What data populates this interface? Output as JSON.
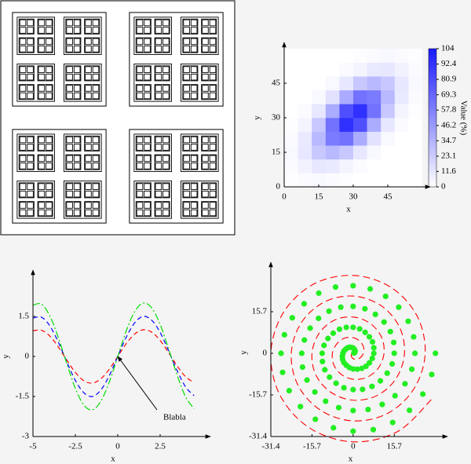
{
  "chart_data": [
    {
      "type": "heatmap",
      "xlabel": "x",
      "ylabel": "y",
      "xlim": [
        0,
        60
      ],
      "ylim": [
        0,
        60
      ],
      "xticks": [
        0,
        15,
        30,
        45
      ],
      "yticks": [
        0,
        15,
        30,
        45
      ],
      "xbins": [
        0,
        6,
        12,
        18,
        24,
        30,
        36,
        42,
        48,
        54,
        60
      ],
      "ybins": [
        0,
        6,
        12,
        18,
        24,
        30,
        36,
        42,
        48,
        54,
        60
      ],
      "values": [
        [
          1,
          2,
          3,
          2,
          1,
          0,
          0,
          0,
          0,
          0
        ],
        [
          2,
          6,
          11,
          10,
          5,
          2,
          0,
          0,
          0,
          0
        ],
        [
          3,
          11,
          25,
          32,
          25,
          11,
          3,
          0,
          0,
          0
        ],
        [
          2,
          10,
          32,
          60,
          64,
          38,
          13,
          3,
          0,
          0
        ],
        [
          1,
          5,
          25,
          64,
          94,
          80,
          38,
          11,
          2,
          0
        ],
        [
          0,
          2,
          11,
          38,
          80,
          94,
          64,
          25,
          5,
          1
        ],
        [
          0,
          0,
          3,
          13,
          38,
          64,
          60,
          32,
          10,
          2
        ],
        [
          0,
          0,
          0,
          3,
          11,
          25,
          32,
          25,
          11,
          3
        ],
        [
          0,
          0,
          0,
          0,
          2,
          5,
          10,
          11,
          6,
          2
        ],
        [
          0,
          0,
          0,
          0,
          0,
          1,
          2,
          3,
          2,
          1
        ]
      ],
      "colorbar": {
        "label": "Value (%)",
        "lim": [
          0,
          104
        ],
        "ticks": [
          0,
          11.6,
          23.1,
          34.7,
          46.2,
          57.8,
          69.3,
          80.9,
          92.4,
          104
        ],
        "colors": [
          "#ffffff",
          "#1a1aff"
        ]
      }
    },
    {
      "type": "line",
      "xlabel": "x",
      "ylabel": "y",
      "xlim": [
        -5,
        5
      ],
      "ylim": [
        -3,
        3
      ],
      "xticks": [
        -5,
        -2.5,
        0,
        2.5
      ],
      "yticks": [
        -3,
        -1.5,
        0,
        1.5
      ],
      "x": [
        -5,
        -4.5,
        -4,
        -3.5,
        -3,
        -2.5,
        -2,
        -1.5,
        -1,
        -0.5,
        0,
        0.5,
        1,
        1.5,
        2,
        2.5,
        3,
        3.5,
        4,
        4.5
      ],
      "series": [
        {
          "color": "#ff0000",
          "dash": "dashed",
          "values": [
            0.96,
            0.98,
            0.76,
            0.35,
            -0.14,
            -0.6,
            -0.91,
            -1,
            -0.84,
            -0.48,
            0,
            0.48,
            0.84,
            1,
            0.91,
            0.6,
            0.14,
            -0.35,
            -0.76,
            -0.98
          ]
        },
        {
          "color": "#0000ff",
          "dash": "dashed",
          "values": [
            1.44,
            1.47,
            1.14,
            0.53,
            -0.21,
            -0.9,
            -1.36,
            -1.5,
            -1.26,
            -0.72,
            0,
            0.72,
            1.26,
            1.5,
            1.36,
            0.9,
            0.21,
            -0.53,
            -1.14,
            -1.47
          ]
        },
        {
          "color": "#00dd00",
          "dash": "dashdot",
          "values": [
            1.92,
            1.96,
            1.51,
            0.7,
            -0.28,
            -1.2,
            -1.82,
            -2,
            -1.68,
            -0.96,
            0,
            0.96,
            1.68,
            2,
            1.82,
            1.2,
            0.28,
            -0.7,
            -1.51,
            -1.96
          ]
        }
      ],
      "annotation": {
        "text": "Blabla",
        "x": 0,
        "y": 0
      }
    },
    {
      "type": "scatter",
      "xlabel": "x",
      "ylabel": "y",
      "xlim": [
        -31.4,
        33
      ],
      "ylim": [
        -31.4,
        32
      ],
      "xticks": [
        -31.4,
        -15.7,
        0,
        15.7
      ],
      "yticks": [
        -31.4,
        -15.7,
        0,
        15.7
      ],
      "series": [
        {
          "color": "#22ee22",
          "mode": "markers",
          "x": [
            0.3,
            0.6,
            0.7,
            0.7,
            0.4,
            0,
            -0.6,
            -1.3,
            -2.1,
            -2.8,
            -3.5,
            -3.9,
            -4.1,
            -4,
            -3.5,
            -2.6,
            -1.4,
            0,
            1.6,
            3.3,
            4.9,
            6.2,
            7.3,
            7.9,
            7.9,
            7.4,
            6.2,
            4.6,
            2.5,
            0,
            -2.6,
            -5.2,
            -7.6,
            -9.6,
            -11.1,
            -11.8,
            -11.7,
            -10.8,
            -9,
            -6.5,
            -3.5,
            0,
            3.6,
            7.2,
            10.4,
            13,
            14.9,
            15.7,
            15.5,
            14.2,
            11.8,
            8.5,
            4.5,
            0,
            -4.7,
            -9.2,
            -13.2,
            -16.4,
            -18.6,
            -19.6,
            -19.3,
            -17.6,
            -14.6,
            -10.5,
            -5.5,
            0,
            5.7,
            11.1,
            16,
            19.8,
            22.4,
            23.6,
            23.1,
            21,
            17.4,
            12.4,
            6.5,
            0,
            -6.7,
            -13.1,
            -18.7,
            -23.2,
            -26.2,
            -27.5,
            -26.9,
            -24.4,
            -20.1,
            -14.4,
            -7.5,
            0,
            7.7,
            15.1,
            21.5,
            26.6,
            30,
            31.4
          ],
          "values": [
            0.1,
            0.3,
            0.7,
            1.1,
            1.6,
            2,
            2.2,
            2.3,
            2.1,
            1.6,
            0.9,
            0,
            -1.1,
            -2.3,
            -3.5,
            -4.5,
            -5.4,
            -5.9,
            -6,
            -5.7,
            -4.9,
            -3.6,
            -1.9,
            0,
            2.1,
            4.3,
            6.2,
            7.9,
            9.2,
            9.8,
            9.8,
            9.1,
            7.6,
            5.6,
            3,
            0,
            -3.1,
            -6.2,
            -9,
            -11.3,
            -13,
            -13.7,
            -13.6,
            -12.5,
            -10.4,
            -7.5,
            -4,
            0,
            4.1,
            8.2,
            11.8,
            14.7,
            16.8,
            17.7,
            17.4,
            15.9,
            13.2,
            9.5,
            5,
            0,
            -5.2,
            -10.1,
            -14.6,
            -18.1,
            -20.5,
            -21.6,
            -21.2,
            -19.3,
            -16,
            -11.5,
            -6,
            0,
            6.2,
            12.1,
            17.4,
            21.5,
            24.3,
            25.5,
            25,
            22.7,
            18.7,
            13.4,
            7,
            0,
            -7.2,
            -14.1,
            -20.1,
            -24.9,
            -28.1,
            -29.4,
            -28.8,
            -26.1,
            -21.5,
            -15.4,
            -8,
            0
          ]
        },
        {
          "color": "#ff0000",
          "mode": "dashed-line",
          "x": [
            -0.6,
            -0.7,
            0,
            1.3,
            2.8,
            3.9,
            4,
            2.6,
            0,
            -3.3,
            -6.2,
            -7.9,
            -7.4,
            -4.6,
            0,
            5.2,
            9.6,
            11.8,
            10.8,
            6.5,
            0,
            -7.2,
            -13,
            -15.7,
            -14.2,
            -8.5,
            0,
            9.2,
            16.4,
            19.6,
            17.6,
            10.5,
            0,
            -11.1,
            -19.8,
            -23.6,
            -21,
            -12.4,
            0,
            13.1,
            23.2,
            27.5,
            24.4,
            14.4,
            0,
            -15.1,
            -26.6,
            -31.4,
            -27.8,
            -16.4,
            0,
            17,
            30
          ],
          "values": [
            -0.3,
            -1.1,
            -2,
            -2.3,
            -1.6,
            0,
            2.3,
            4.5,
            5.9,
            5.7,
            3.6,
            0,
            -4.3,
            -7.9,
            -9.8,
            -9.1,
            -5.6,
            0,
            6.2,
            11.3,
            13.7,
            12.5,
            7.5,
            0,
            -8.2,
            -14.7,
            -17.7,
            -15.9,
            -9.5,
            0,
            10.1,
            18.1,
            21.6,
            19.3,
            11.5,
            0,
            -12.1,
            -21.5,
            -25.5,
            -22.7,
            -13.4,
            0,
            14.1,
            24.9,
            29.4,
            26.1,
            15.4,
            0,
            -16,
            -28.3,
            -33.4,
            -29.5,
            -17.3
          ]
        }
      ]
    }
  ]
}
